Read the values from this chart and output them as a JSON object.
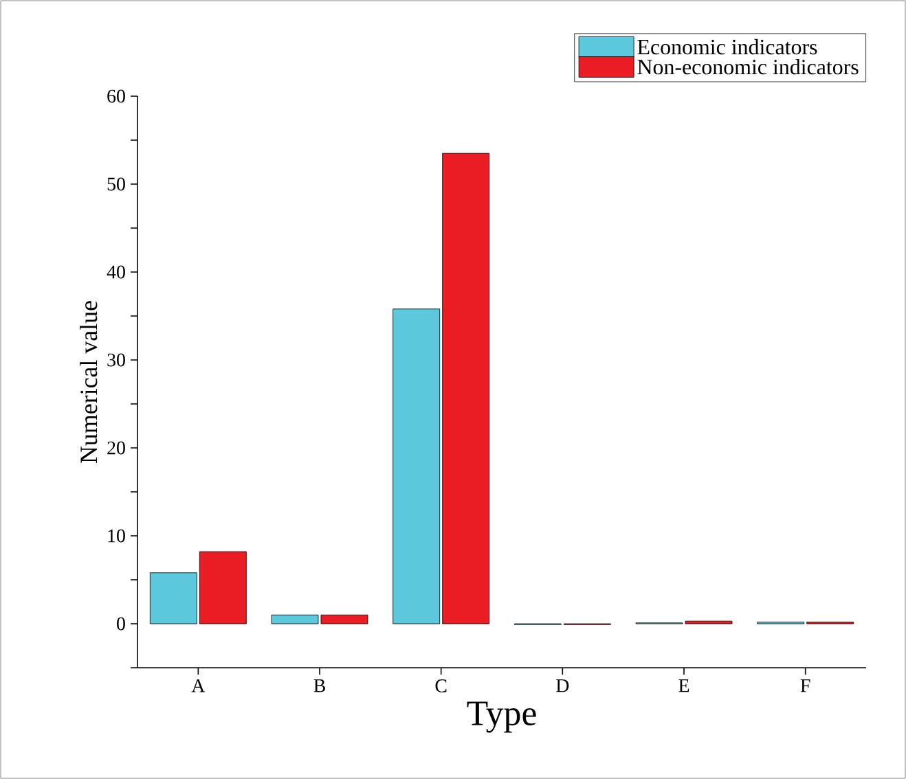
{
  "chart_data": {
    "type": "bar",
    "xlabel": "Type",
    "ylabel": "Numerical value",
    "categories": [
      "A",
      "B",
      "C",
      "D",
      "E",
      "F"
    ],
    "series": [
      {
        "name": "Economic indicators",
        "color": "#5bc8dc",
        "values": [
          5.8,
          1.0,
          35.8,
          -0.1,
          0.1,
          0.2
        ]
      },
      {
        "name": "Non-economic indicators",
        "color": "#ea1c24",
        "values": [
          8.2,
          1.0,
          53.5,
          -0.1,
          0.3,
          0.2
        ]
      }
    ],
    "ylim": [
      -5,
      60
    ],
    "yticks": [
      {
        "value": -5,
        "label": null
      },
      0,
      {
        "value": 5,
        "label": null
      },
      10,
      {
        "value": 15,
        "label": null
      },
      20,
      {
        "value": 25,
        "label": null
      },
      30,
      {
        "value": 35,
        "label": null
      },
      40,
      {
        "value": 45,
        "label": null
      },
      50,
      {
        "value": 55,
        "label": null
      },
      60
    ],
    "legend": "top right"
  }
}
